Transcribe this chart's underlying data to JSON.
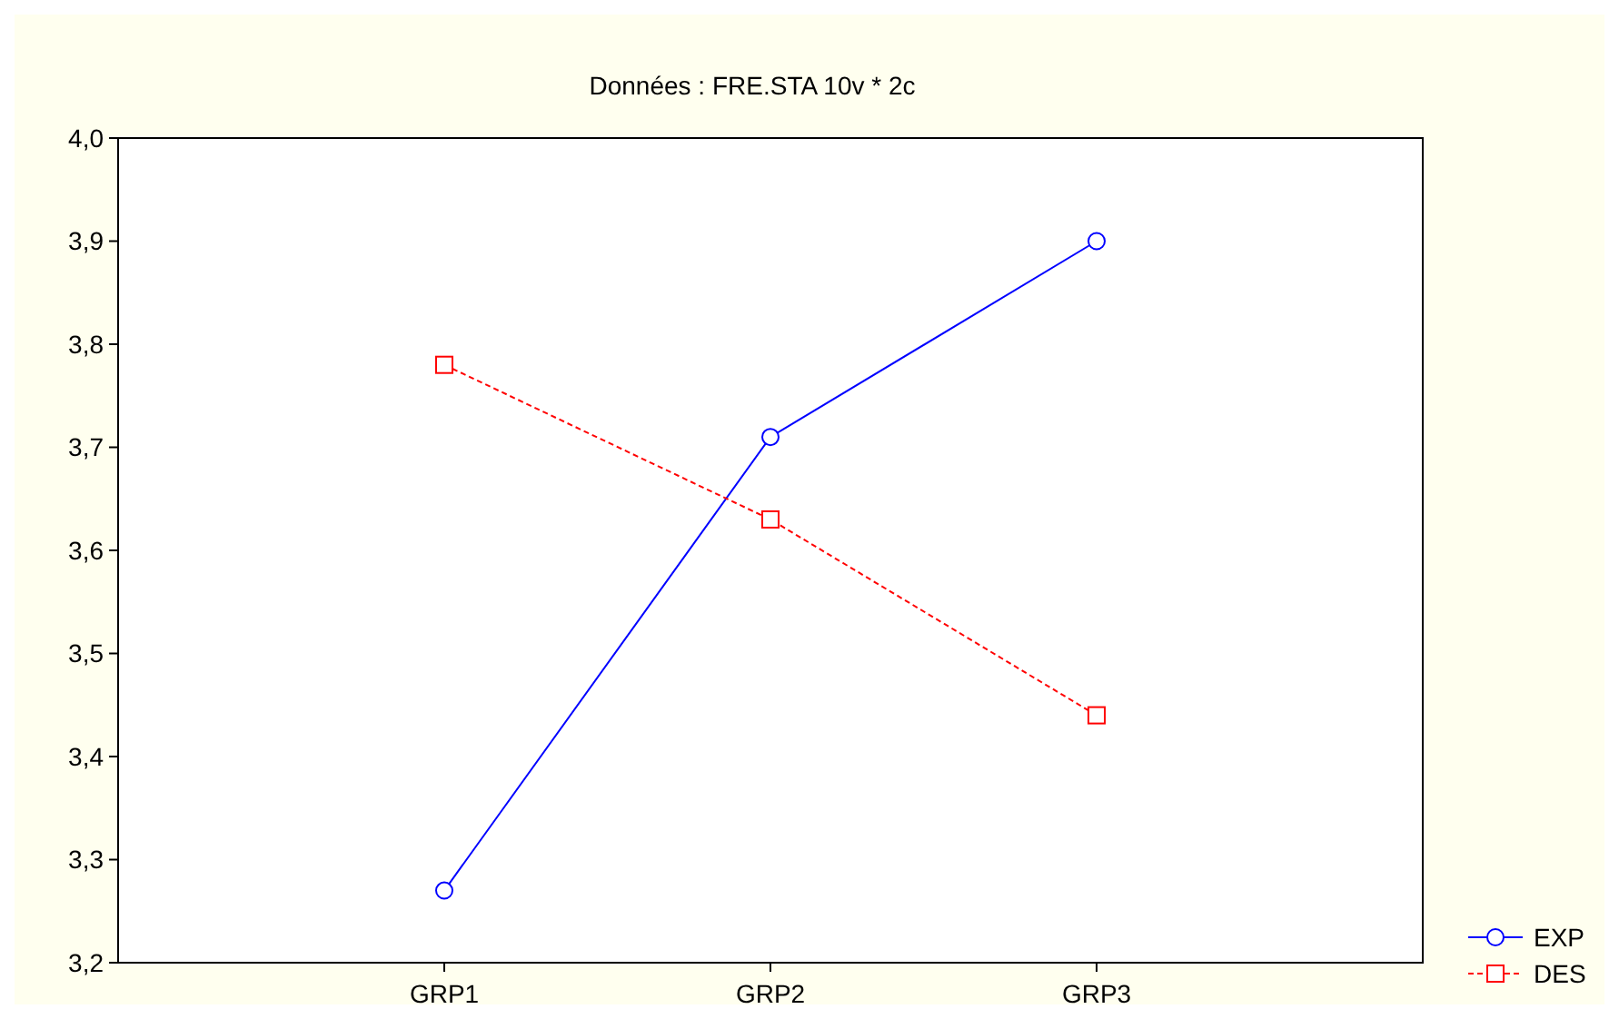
{
  "chart_data": {
    "type": "line",
    "title": "Données : FRE.STA 10v * 2c",
    "categories": [
      "GRP1",
      "GRP2",
      "GRP3"
    ],
    "series": [
      {
        "name": "EXP",
        "color": "#0000ff",
        "values": [
          3.27,
          3.71,
          3.9
        ],
        "marker": "circle",
        "line_style": "solid"
      },
      {
        "name": "DES",
        "color": "#ff0000",
        "values": [
          3.78,
          3.63,
          3.44
        ],
        "marker": "square",
        "line_style": "dashed"
      }
    ],
    "ylim": [
      3.2,
      4.0
    ],
    "yticks": [
      {
        "value": 3.2,
        "label": "3,2"
      },
      {
        "value": 3.3,
        "label": "3,3"
      },
      {
        "value": 3.4,
        "label": "3,4"
      },
      {
        "value": 3.5,
        "label": "3,5"
      },
      {
        "value": 3.6,
        "label": "3,6"
      },
      {
        "value": 3.7,
        "label": "3,7"
      },
      {
        "value": 3.8,
        "label": "3,8"
      },
      {
        "value": 3.9,
        "label": "3,9"
      },
      {
        "value": 4.0,
        "label": "4,0"
      }
    ],
    "grid": false,
    "legend": "bottom right"
  }
}
